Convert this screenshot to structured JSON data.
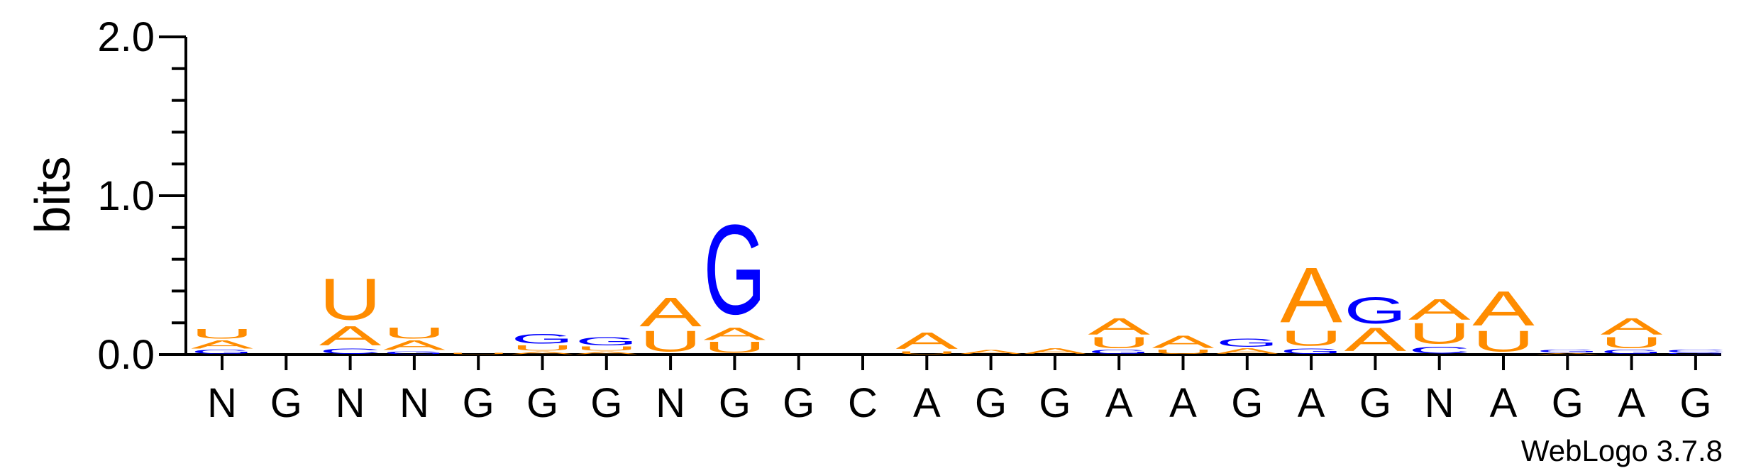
{
  "chart_data": {
    "type": "sequence-logo",
    "ylabel": "bits",
    "ylim": [
      0,
      2.0
    ],
    "yticks": [
      "0.0",
      "1.0",
      "2.0"
    ],
    "ytick_values": [
      0.0,
      1.0,
      2.0
    ],
    "colors": {
      "A": "#ff8c00",
      "U": "#ff8c00",
      "G": "#0000ff",
      "C": "#0000ff"
    },
    "positions": [
      {
        "label": "N",
        "stack": [
          {
            "letter": "G",
            "height": 0.03
          },
          {
            "letter": "A",
            "height": 0.06
          },
          {
            "letter": "U",
            "height": 0.07
          }
        ]
      },
      {
        "label": "G",
        "stack": []
      },
      {
        "label": "N",
        "stack": [
          {
            "letter": "C",
            "height": 0.04
          },
          {
            "letter": "A",
            "height": 0.14
          },
          {
            "letter": "U",
            "height": 0.3
          }
        ]
      },
      {
        "label": "N",
        "stack": [
          {
            "letter": "G",
            "height": 0.02
          },
          {
            "letter": "A",
            "height": 0.07
          },
          {
            "letter": "U",
            "height": 0.08
          }
        ]
      },
      {
        "label": "G",
        "stack": [
          {
            "letter": "U",
            "height": 0.01
          }
        ]
      },
      {
        "label": "G",
        "stack": [
          {
            "letter": "A",
            "height": 0.02
          },
          {
            "letter": "U",
            "height": 0.04
          },
          {
            "letter": "G",
            "height": 0.07
          }
        ]
      },
      {
        "label": "G",
        "stack": [
          {
            "letter": "A",
            "height": 0.02
          },
          {
            "letter": "U",
            "height": 0.03
          },
          {
            "letter": "G",
            "height": 0.06
          }
        ]
      },
      {
        "label": "N",
        "stack": [
          {
            "letter": "U",
            "height": 0.15
          },
          {
            "letter": "A",
            "height": 0.21
          }
        ]
      },
      {
        "label": "G",
        "stack": [
          {
            "letter": "U",
            "height": 0.08
          },
          {
            "letter": "A",
            "height": 0.09
          },
          {
            "letter": "G",
            "height": 0.65
          }
        ]
      },
      {
        "label": "G",
        "stack": []
      },
      {
        "label": "C",
        "stack": []
      },
      {
        "label": "A",
        "stack": [
          {
            "letter": "U",
            "height": 0.02
          },
          {
            "letter": "A",
            "height": 0.12
          }
        ]
      },
      {
        "label": "G",
        "stack": [
          {
            "letter": "A",
            "height": 0.03
          }
        ]
      },
      {
        "label": "G",
        "stack": [
          {
            "letter": "A",
            "height": 0.04
          }
        ]
      },
      {
        "label": "A",
        "stack": [
          {
            "letter": "G",
            "height": 0.03
          },
          {
            "letter": "U",
            "height": 0.08
          },
          {
            "letter": "A",
            "height": 0.12
          }
        ]
      },
      {
        "label": "A",
        "stack": [
          {
            "letter": "U",
            "height": 0.03
          },
          {
            "letter": "A",
            "height": 0.09
          }
        ]
      },
      {
        "label": "G",
        "stack": [
          {
            "letter": "A",
            "height": 0.04
          },
          {
            "letter": "G",
            "height": 0.06
          }
        ]
      },
      {
        "label": "A",
        "stack": [
          {
            "letter": "G",
            "height": 0.04
          },
          {
            "letter": "U",
            "height": 0.11
          },
          {
            "letter": "A",
            "height": 0.4
          }
        ]
      },
      {
        "label": "G",
        "stack": [
          {
            "letter": "A",
            "height": 0.17
          },
          {
            "letter": "G",
            "height": 0.19
          }
        ]
      },
      {
        "label": "N",
        "stack": [
          {
            "letter": "C",
            "height": 0.05
          },
          {
            "letter": "U",
            "height": 0.15
          },
          {
            "letter": "A",
            "height": 0.15
          }
        ]
      },
      {
        "label": "A",
        "stack": [
          {
            "letter": "U",
            "height": 0.15
          },
          {
            "letter": "A",
            "height": 0.25
          }
        ]
      },
      {
        "label": "G",
        "stack": [
          {
            "letter": "A",
            "height": 0.01
          },
          {
            "letter": "G",
            "height": 0.02
          }
        ]
      },
      {
        "label": "A",
        "stack": [
          {
            "letter": "G",
            "height": 0.03
          },
          {
            "letter": "U",
            "height": 0.08
          },
          {
            "letter": "A",
            "height": 0.12
          }
        ]
      },
      {
        "label": "G",
        "stack": [
          {
            "letter": "G",
            "height": 0.01
          },
          {
            "letter": "C",
            "height": 0.02
          }
        ]
      }
    ]
  },
  "footer": {
    "credit": "WebLogo 3.7.8"
  }
}
